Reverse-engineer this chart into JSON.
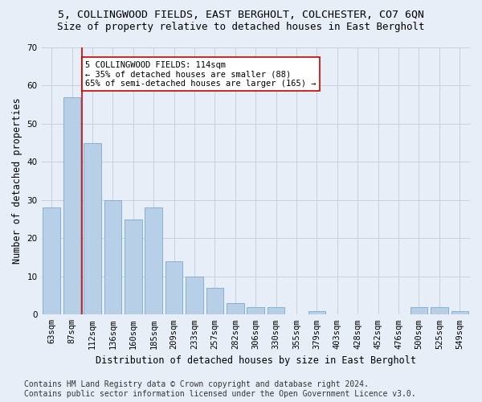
{
  "title": "5, COLLINGWOOD FIELDS, EAST BERGHOLT, COLCHESTER, CO7 6QN",
  "subtitle": "Size of property relative to detached houses in East Bergholt",
  "xlabel": "Distribution of detached houses by size in East Bergholt",
  "ylabel": "Number of detached properties",
  "categories": [
    "63sqm",
    "87sqm",
    "112sqm",
    "136sqm",
    "160sqm",
    "185sqm",
    "209sqm",
    "233sqm",
    "257sqm",
    "282sqm",
    "306sqm",
    "330sqm",
    "355sqm",
    "379sqm",
    "403sqm",
    "428sqm",
    "452sqm",
    "476sqm",
    "500sqm",
    "525sqm",
    "549sqm"
  ],
  "values": [
    28,
    57,
    45,
    30,
    25,
    28,
    14,
    10,
    7,
    3,
    2,
    2,
    0,
    1,
    0,
    0,
    0,
    0,
    2,
    2,
    1
  ],
  "bar_color": "#b8cfe8",
  "bar_edge_color": "#7aaad0",
  "highlight_color": "#cc0000",
  "annotation_text": "5 COLLINGWOOD FIELDS: 114sqm\n← 35% of detached houses are smaller (88)\n65% of semi-detached houses are larger (165) →",
  "annotation_box_color": "#ffffff",
  "annotation_box_edge": "#cc0000",
  "ylim": [
    0,
    70
  ],
  "yticks": [
    0,
    10,
    20,
    30,
    40,
    50,
    60,
    70
  ],
  "footer_line1": "Contains HM Land Registry data © Crown copyright and database right 2024.",
  "footer_line2": "Contains public sector information licensed under the Open Government Licence v3.0.",
  "bg_color": "#e8eef8",
  "grid_color": "#c8d0e0",
  "title_fontsize": 9.5,
  "subtitle_fontsize": 9,
  "axis_label_fontsize": 8.5,
  "tick_fontsize": 7.5,
  "footer_fontsize": 7,
  "annot_fontsize": 7.5
}
